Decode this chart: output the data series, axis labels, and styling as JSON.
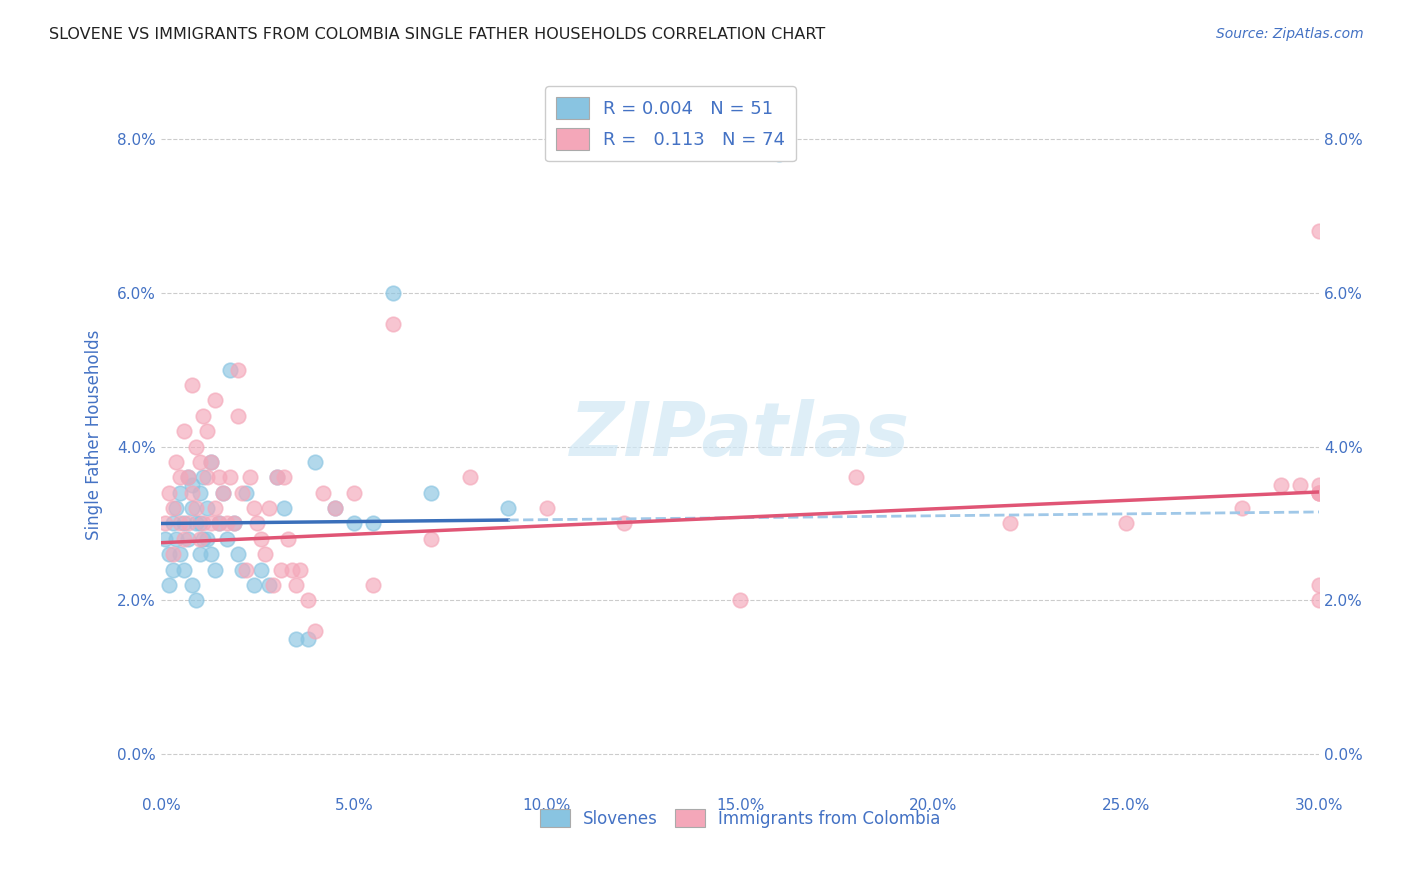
{
  "title": "SLOVENE VS IMMIGRANTS FROM COLOMBIA SINGLE FATHER HOUSEHOLDS CORRELATION CHART",
  "source": "Source: ZipAtlas.com",
  "ylabel": "Single Father Households",
  "xlabel_vals": [
    0.0,
    5.0,
    10.0,
    15.0,
    20.0,
    25.0,
    30.0
  ],
  "ylabel_vals": [
    0.0,
    2.0,
    4.0,
    6.0,
    8.0
  ],
  "xlim": [
    0,
    30
  ],
  "ylim": [
    -0.5,
    8.8
  ],
  "legend1_label": "R = 0.004   N = 51",
  "legend2_label": "R =   0.113   N = 74",
  "legend_label1": "Slovenes",
  "legend_label2": "Immigrants from Colombia",
  "blue_color": "#89c4e1",
  "pink_color": "#f4a7b9",
  "blue_line_color": "#3a6fba",
  "pink_line_color": "#e05575",
  "blue_line_dashed_color": "#a0c8e8",
  "axis_label_color": "#4472c4",
  "watermark_color": "#d0e8f5",
  "blue_x": [
    0.1,
    0.2,
    0.2,
    0.3,
    0.3,
    0.4,
    0.4,
    0.5,
    0.5,
    0.6,
    0.6,
    0.7,
    0.7,
    0.8,
    0.8,
    0.8,
    0.9,
    0.9,
    1.0,
    1.0,
    1.0,
    1.1,
    1.1,
    1.2,
    1.2,
    1.3,
    1.3,
    1.4,
    1.5,
    1.6,
    1.7,
    1.8,
    1.9,
    2.0,
    2.1,
    2.2,
    2.4,
    2.6,
    2.8,
    3.0,
    3.2,
    3.5,
    3.8,
    4.0,
    4.5,
    5.0,
    5.5,
    6.0,
    7.0,
    9.0,
    16.0
  ],
  "blue_y": [
    2.8,
    2.6,
    2.2,
    3.0,
    2.4,
    2.8,
    3.2,
    2.6,
    3.4,
    2.4,
    3.0,
    2.8,
    3.6,
    2.2,
    3.2,
    3.5,
    2.0,
    3.0,
    2.6,
    3.0,
    3.4,
    2.8,
    3.6,
    2.8,
    3.2,
    2.6,
    3.8,
    2.4,
    3.0,
    3.4,
    2.8,
    5.0,
    3.0,
    2.6,
    2.4,
    3.4,
    2.2,
    2.4,
    2.2,
    3.6,
    3.2,
    1.5,
    1.5,
    3.8,
    3.2,
    3.0,
    3.0,
    6.0,
    3.4,
    3.2,
    7.8
  ],
  "blue_solid_end": 9.0,
  "pink_x": [
    0.1,
    0.2,
    0.3,
    0.3,
    0.4,
    0.5,
    0.5,
    0.6,
    0.6,
    0.7,
    0.7,
    0.8,
    0.8,
    0.9,
    0.9,
    1.0,
    1.0,
    1.1,
    1.1,
    1.2,
    1.2,
    1.3,
    1.3,
    1.4,
    1.4,
    1.5,
    1.5,
    1.6,
    1.7,
    1.8,
    1.9,
    2.0,
    2.0,
    2.1,
    2.2,
    2.3,
    2.4,
    2.5,
    2.6,
    2.7,
    2.8,
    2.9,
    3.0,
    3.1,
    3.2,
    3.3,
    3.4,
    3.5,
    3.6,
    3.8,
    4.0,
    4.2,
    4.5,
    5.0,
    5.5,
    6.0,
    7.0,
    8.0,
    10.0,
    12.0,
    15.0,
    18.0,
    22.0,
    25.0,
    28.0,
    29.0,
    29.5,
    30.0,
    30.0,
    30.0,
    30.0,
    30.0,
    30.0,
    30.0
  ],
  "pink_y": [
    3.0,
    3.4,
    3.2,
    2.6,
    3.8,
    3.0,
    3.6,
    4.2,
    2.8,
    3.6,
    3.0,
    3.4,
    4.8,
    3.2,
    4.0,
    3.8,
    2.8,
    3.0,
    4.4,
    3.6,
    4.2,
    3.0,
    3.8,
    3.2,
    4.6,
    3.6,
    3.0,
    3.4,
    3.0,
    3.6,
    3.0,
    5.0,
    4.4,
    3.4,
    2.4,
    3.6,
    3.2,
    3.0,
    2.8,
    2.6,
    3.2,
    2.2,
    3.6,
    2.4,
    3.6,
    2.8,
    2.4,
    2.2,
    2.4,
    2.0,
    1.6,
    3.4,
    3.2,
    3.4,
    2.2,
    5.6,
    2.8,
    3.6,
    3.2,
    3.0,
    2.0,
    3.6,
    3.0,
    3.0,
    3.2,
    3.5,
    3.5,
    3.5,
    2.0,
    3.4,
    3.4,
    3.4,
    2.2,
    6.8
  ]
}
